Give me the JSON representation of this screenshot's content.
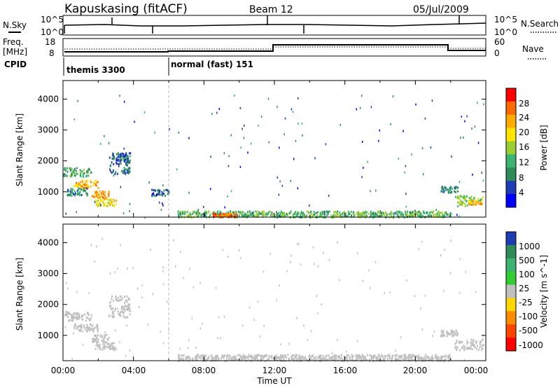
{
  "header": {
    "station": "Kapuskasing (fitACF)",
    "beam": "Beam 12",
    "date": "05/Jul/2009"
  },
  "top_panels": {
    "noise": {
      "left_label": "N.Sky",
      "left_ticks": [
        "10^5",
        "10^0"
      ],
      "right_ticks": [
        "10^5",
        "10^0"
      ],
      "right_label": "N.Search"
    },
    "freq": {
      "left_label_line1": "Freq.",
      "left_label_line2": "[MHz]",
      "left_ticks": [
        "18",
        "8"
      ],
      "right_ticks": [
        "60",
        "0"
      ],
      "right_label": "Nave"
    },
    "cpid": {
      "label": "CPID",
      "segments": [
        {
          "name": "themis 3300",
          "start_hour": 0
        },
        {
          "name": "normal (fast) 151",
          "start_hour": 6
        }
      ]
    }
  },
  "x_axis": {
    "label": "Time UT",
    "ticks": [
      "00:00",
      "04:00",
      "08:00",
      "12:00",
      "16:00",
      "20:00",
      "00:00"
    ]
  },
  "power_colorbar": {
    "label": "Power [dB]",
    "ticks": [
      "28",
      "24",
      "20",
      "16",
      "12",
      "8",
      "4"
    ],
    "colors": [
      "#ff0000",
      "#ff6a00",
      "#ffaa00",
      "#ffe400",
      "#9acd32",
      "#3cb371",
      "#2e8b57",
      "#1e3cb4",
      "#0000ff"
    ]
  },
  "velocity_colorbar": {
    "label": "Velocity [m s^-1]",
    "ticks": [
      "1000",
      "500",
      "100",
      "25",
      "-25",
      "-100",
      "-500",
      "-1000"
    ],
    "colors": [
      "#1e3cb4",
      "#2e8b57",
      "#3cb371",
      "#32cd32",
      "#c0c0c0",
      "#ffd700",
      "#ff8c00",
      "#ff4500",
      "#ff0000"
    ]
  },
  "chart_data": [
    {
      "type": "heatmap",
      "panel": "power",
      "ylabel": "Slant Range [km]",
      "xlabel": "",
      "ylim": [
        180,
        4600
      ],
      "xlim_hours": [
        0,
        24
      ],
      "yticks": [
        1000,
        2000,
        3000,
        4000
      ],
      "colorbar_label": "Power [dB]",
      "colorbar_range": [
        0,
        30
      ],
      "dashed_line_hour": 6,
      "patches": [
        {
          "t0": 0.0,
          "t1": 1.6,
          "r0": 1500,
          "r1": 1800,
          "value": 10
        },
        {
          "t0": 0.6,
          "t1": 2.0,
          "r0": 1150,
          "r1": 1400,
          "value": 22
        },
        {
          "t0": 1.6,
          "t1": 2.6,
          "r0": 800,
          "r1": 1050,
          "value": 24
        },
        {
          "t0": 0.2,
          "t1": 1.4,
          "r0": 900,
          "r1": 1150,
          "value": 8
        },
        {
          "t0": 1.8,
          "t1": 3.0,
          "r0": 550,
          "r1": 800,
          "value": 18
        },
        {
          "t0": 2.6,
          "t1": 3.8,
          "r0": 1600,
          "r1": 2300,
          "value": 6
        },
        {
          "t0": 3.0,
          "t1": 3.8,
          "r0": 2000,
          "r1": 2300,
          "value": 5
        },
        {
          "t0": 5.0,
          "t1": 6.0,
          "r0": 900,
          "r1": 1100,
          "value": 5
        },
        {
          "t0": 6.5,
          "t1": 22.0,
          "r0": 200,
          "r1": 400,
          "value": 12
        },
        {
          "t0": 8.5,
          "t1": 9.8,
          "r0": 200,
          "r1": 320,
          "value": 26
        },
        {
          "t0": 21.4,
          "t1": 22.4,
          "r0": 1000,
          "r1": 1200,
          "value": 8
        },
        {
          "t0": 22.2,
          "t1": 23.8,
          "r0": 550,
          "r1": 900,
          "value": 14
        },
        {
          "t0": 23.0,
          "t1": 23.8,
          "r0": 600,
          "r1": 750,
          "value": 22
        }
      ]
    },
    {
      "type": "heatmap",
      "panel": "velocity",
      "ylabel": "Slant Range [km]",
      "xlabel": "Time UT",
      "ylim": [
        180,
        4600
      ],
      "xlim_hours": [
        0,
        24
      ],
      "yticks": [
        1000,
        2000,
        3000,
        4000
      ],
      "colorbar_label": "Velocity [m s^-1]",
      "dashed_line_hour": 6,
      "patches": [
        {
          "t0": 0.0,
          "t1": 1.6,
          "r0": 1500,
          "r1": 1800,
          "value": 0
        },
        {
          "t0": 0.6,
          "t1": 2.0,
          "r0": 1150,
          "r1": 1400,
          "value": 0
        },
        {
          "t0": 1.6,
          "t1": 2.6,
          "r0": 800,
          "r1": 1050,
          "value": 0
        },
        {
          "t0": 1.8,
          "t1": 3.0,
          "r0": 550,
          "r1": 800,
          "value": 0
        },
        {
          "t0": 2.6,
          "t1": 3.8,
          "r0": 1600,
          "r1": 2300,
          "value": 0
        },
        {
          "t0": 6.5,
          "t1": 22.0,
          "r0": 200,
          "r1": 400,
          "value": 0
        },
        {
          "t0": 21.4,
          "t1": 22.4,
          "r0": 1000,
          "r1": 1200,
          "value": 0
        },
        {
          "t0": 22.2,
          "t1": 23.8,
          "r0": 550,
          "r1": 900,
          "value": 0
        }
      ]
    }
  ]
}
